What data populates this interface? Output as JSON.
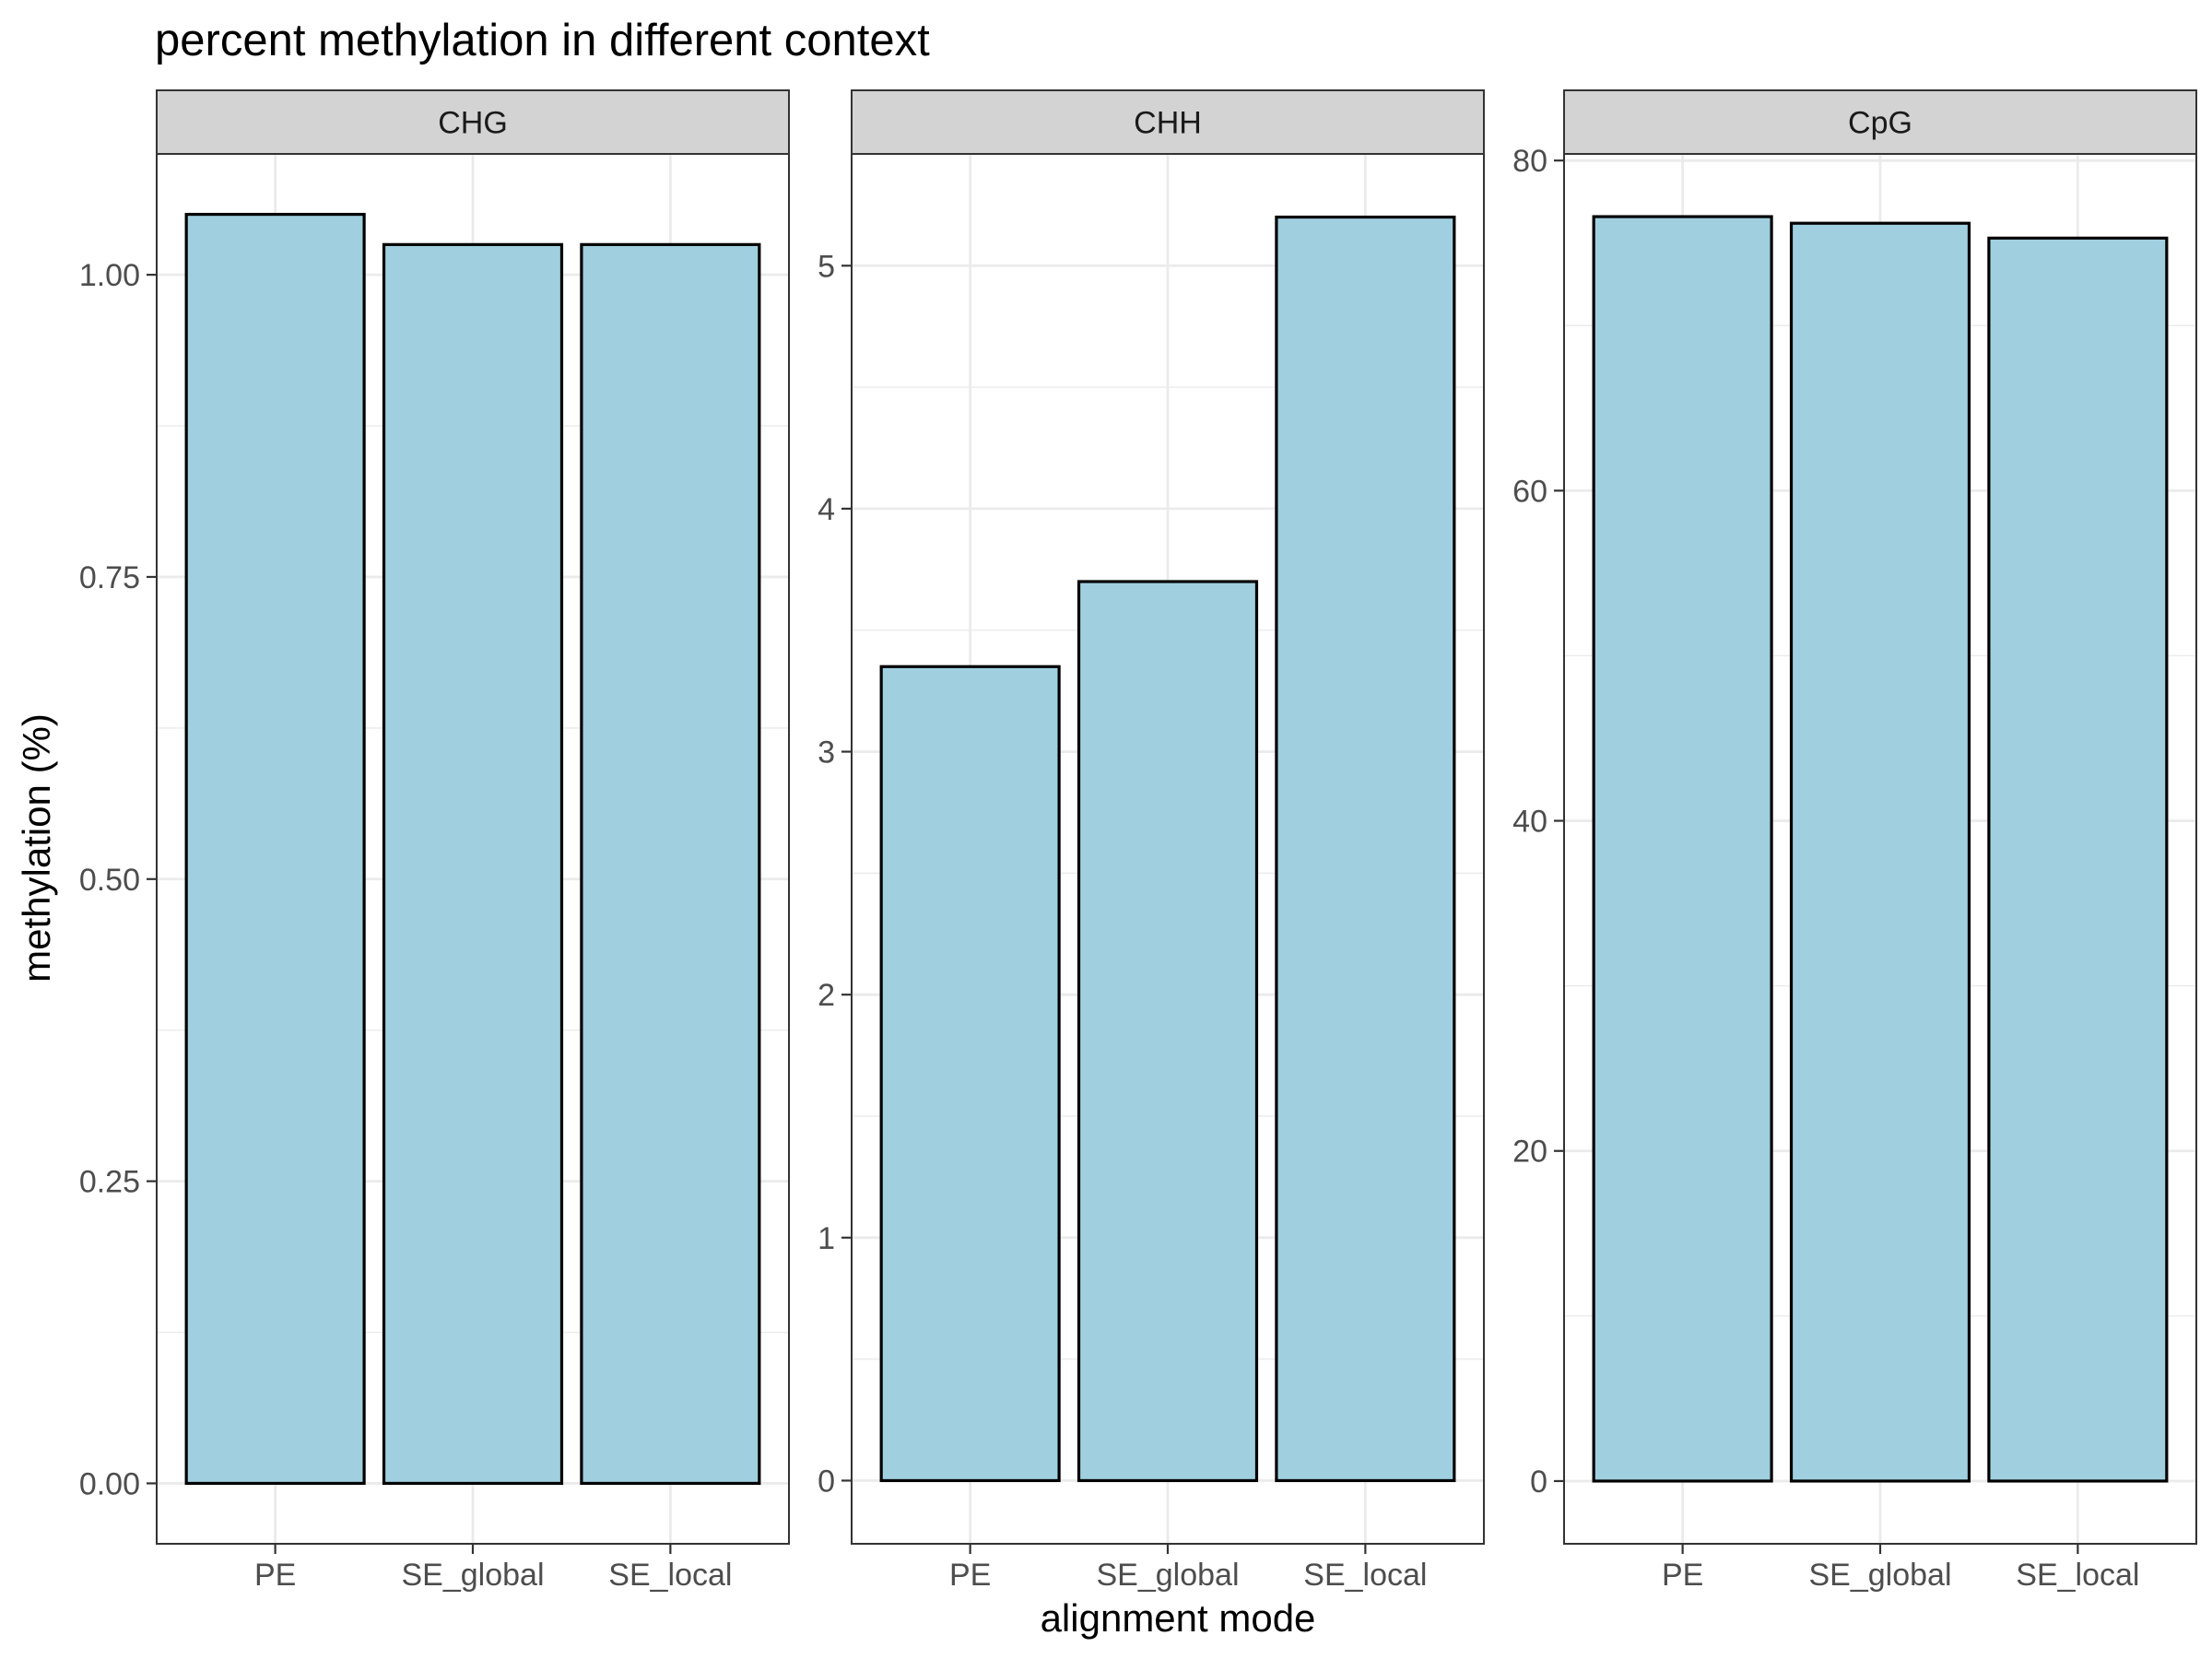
{
  "chart_data": {
    "type": "bar",
    "title": "percent methylation in different context",
    "xlabel": "alignment mode",
    "ylabel": "methylation (%)",
    "categories": [
      "PE",
      "SE_global",
      "SE_local"
    ],
    "grid": true,
    "bar_fill": "#A0CFE0",
    "bar_outline": "#000000",
    "strip_fill": "#D3D3D3",
    "panels": [
      {
        "name": "CHG",
        "values": [
          1.05,
          1.025,
          1.025
        ],
        "ylim": [
          -0.05,
          1.1
        ],
        "ticks": [
          0,
          0.25,
          0.5,
          0.75,
          1.0
        ],
        "tick_labels": [
          "0.00",
          "0.25",
          "0.50",
          "0.75",
          "1.00"
        ]
      },
      {
        "name": "CHH",
        "values": [
          3.35,
          3.7,
          5.2
        ],
        "ylim": [
          -0.26,
          5.46
        ],
        "ticks": [
          0,
          1,
          2,
          3,
          4,
          5
        ],
        "tick_labels": [
          "0",
          "1",
          "2",
          "3",
          "4",
          "5"
        ]
      },
      {
        "name": "CpG",
        "values": [
          76.6,
          76.2,
          75.3
        ],
        "ylim": [
          -3.8,
          80.4
        ],
        "ticks": [
          0,
          20,
          40,
          60,
          80
        ],
        "tick_labels": [
          "0",
          "20",
          "40",
          "60",
          "80"
        ]
      }
    ]
  }
}
